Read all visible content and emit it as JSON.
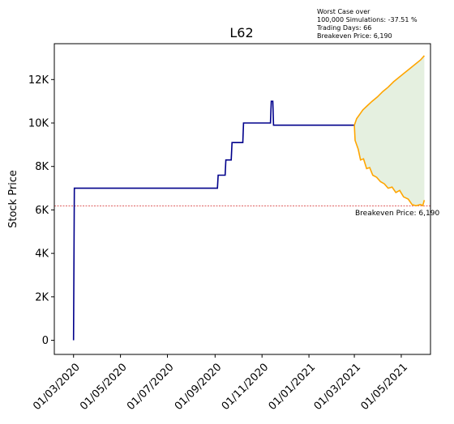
{
  "chart_data": {
    "type": "line",
    "title": "L62",
    "xlabel": "",
    "ylabel": "Stock Price",
    "x_tick_labels": [
      "01/03/2020",
      "01/05/2020",
      "01/07/2020",
      "01/09/2020",
      "01/11/2020",
      "01/01/2021",
      "01/03/2021",
      "01/05/2021"
    ],
    "y_tick_labels": [
      "0",
      "2K",
      "4K",
      "6K",
      "8K",
      "10K",
      "12K"
    ],
    "xlim": [
      "2020-02-05",
      "2021-06-08"
    ],
    "ylim": [
      -650,
      13650
    ],
    "grid": false,
    "colors": {
      "history": "#00008b",
      "forecast": "#ffa500",
      "band": "#e5f0e0",
      "breakeven": "#cc0000"
    },
    "series": [
      {
        "role": "history",
        "points": [
          [
            "2020-03-01",
            0
          ],
          [
            "2020-03-02",
            7000
          ],
          [
            "2020-09-04",
            7000
          ],
          [
            "2020-09-05",
            7600
          ],
          [
            "2020-09-14",
            7600
          ],
          [
            "2020-09-15",
            8300
          ],
          [
            "2020-09-22",
            8300
          ],
          [
            "2020-09-23",
            9100
          ],
          [
            "2020-10-07",
            9100
          ],
          [
            "2020-10-08",
            10000
          ],
          [
            "2020-11-12",
            10000
          ],
          [
            "2020-11-13",
            11000
          ],
          [
            "2020-11-15",
            11000
          ],
          [
            "2020-11-16",
            9900
          ],
          [
            "2021-03-01",
            9900
          ]
        ]
      },
      {
        "role": "forecast-upper",
        "points": [
          [
            "2021-03-01",
            9900
          ],
          [
            "2021-03-04",
            10200
          ],
          [
            "2021-03-08",
            10400
          ],
          [
            "2021-03-12",
            10600
          ],
          [
            "2021-03-18",
            10800
          ],
          [
            "2021-03-24",
            11000
          ],
          [
            "2021-03-31",
            11200
          ],
          [
            "2021-04-07",
            11450
          ],
          [
            "2021-04-14",
            11650
          ],
          [
            "2021-04-21",
            11900
          ],
          [
            "2021-04-28",
            12100
          ],
          [
            "2021-05-05",
            12300
          ],
          [
            "2021-05-12",
            12500
          ],
          [
            "2021-05-19",
            12700
          ],
          [
            "2021-05-26",
            12900
          ],
          [
            "2021-05-31",
            13100
          ]
        ]
      },
      {
        "role": "forecast-lower",
        "points": [
          [
            "2021-03-01",
            9900
          ],
          [
            "2021-03-02",
            9200
          ],
          [
            "2021-03-06",
            8800
          ],
          [
            "2021-03-09",
            8300
          ],
          [
            "2021-03-13",
            8350
          ],
          [
            "2021-03-17",
            7900
          ],
          [
            "2021-03-21",
            7950
          ],
          [
            "2021-03-25",
            7600
          ],
          [
            "2021-03-30",
            7500
          ],
          [
            "2021-04-04",
            7300
          ],
          [
            "2021-04-09",
            7200
          ],
          [
            "2021-04-14",
            7000
          ],
          [
            "2021-04-19",
            7050
          ],
          [
            "2021-04-24",
            6800
          ],
          [
            "2021-04-29",
            6900
          ],
          [
            "2021-05-04",
            6600
          ],
          [
            "2021-05-10",
            6500
          ],
          [
            "2021-05-15",
            6250
          ],
          [
            "2021-05-20",
            6190
          ],
          [
            "2021-05-26",
            6250
          ],
          [
            "2021-05-29",
            6200
          ],
          [
            "2021-05-31",
            6450
          ]
        ]
      }
    ],
    "breakeven": {
      "value": 6190,
      "label": "Breakeven Price: 6,190"
    },
    "annotation_lines": [
      "Worst Case over",
      "100,000 Simulations: -37.51 %",
      "Trading Days: 66",
      "Breakeven Price: 6,190"
    ]
  }
}
